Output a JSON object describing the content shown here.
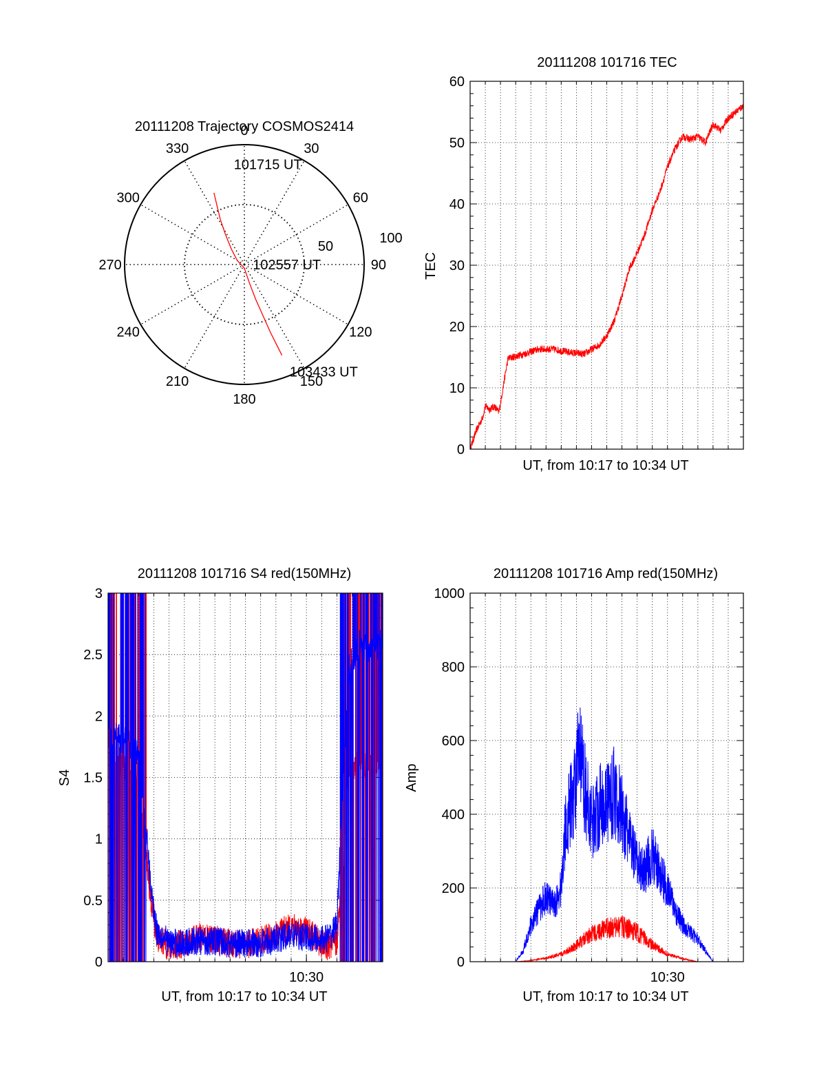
{
  "colors": {
    "red": "#ff0000",
    "blue": "#0000ff",
    "axis": "#000000",
    "grid": "#000000"
  },
  "chart_data": [
    {
      "id": "trajectory",
      "type": "polar",
      "title": "20111208 Trajectory COSMOS2414",
      "angle_labels": [
        "0",
        "30",
        "60",
        "90",
        "120",
        "150",
        "180",
        "210",
        "240",
        "270",
        "300",
        "330"
      ],
      "angles_deg": [
        0,
        30,
        60,
        90,
        120,
        150,
        180,
        210,
        240,
        270,
        300,
        330
      ],
      "radial_range": [
        0,
        100
      ],
      "radial_ticks": [
        {
          "r": 50,
          "label": "50"
        },
        {
          "r": 100,
          "label": "100"
        }
      ],
      "track": [
        [
          337,
          65
        ],
        [
          335,
          54
        ],
        [
          332,
          43
        ],
        [
          328,
          30
        ],
        [
          320,
          17
        ],
        [
          300,
          7
        ],
        [
          180,
          3
        ],
        [
          165,
          15
        ],
        [
          162,
          30
        ],
        [
          160,
          45
        ],
        [
          159,
          60
        ],
        [
          158,
          73
        ],
        [
          157.5,
          82
        ]
      ],
      "annotations": [
        {
          "text": "101715 UT",
          "az": 354,
          "r": 84
        },
        {
          "text": "102557 UT",
          "az": 90,
          "r": 7
        },
        {
          "text": "103433 UT",
          "az": 157,
          "r": 97
        }
      ]
    },
    {
      "id": "tec",
      "type": "line",
      "title": "20111208 101716 TEC",
      "xlabel": "UT, from 10:17 to 10:34 UT",
      "ylabel": "TEC",
      "xlim": [
        0,
        18
      ],
      "ylim": [
        0,
        60
      ],
      "yticks": [
        "0",
        "10",
        "20",
        "30",
        "40",
        "50",
        "60"
      ],
      "xticks": [],
      "series": [
        {
          "name": "TEC",
          "color": "red",
          "x": [
            0,
            0.4,
            0.8,
            1.0,
            1.3,
            1.6,
            1.9,
            2.1,
            2.3,
            2.5,
            2.8,
            3.5,
            4.5,
            5.5,
            6.5,
            7.5,
            8.5,
            9.0,
            9.5,
            10.0,
            10.5,
            11.0,
            11.5,
            12.0,
            12.5,
            13.0,
            13.5,
            14.0,
            14.5,
            15.0,
            15.5,
            16.0,
            16.5,
            17.0,
            17.5,
            18.0
          ],
          "y": [
            0,
            3,
            5,
            7,
            6.5,
            7,
            6,
            9,
            12,
            14.8,
            15,
            15.5,
            16.3,
            16.3,
            15.8,
            15.5,
            17,
            18.5,
            21,
            25,
            29.5,
            32,
            35,
            39,
            42,
            46,
            49,
            51,
            50.5,
            51,
            50,
            53,
            52,
            54,
            55,
            56
          ],
          "jitter": 0.6
        }
      ]
    },
    {
      "id": "s4",
      "type": "line",
      "title": "20111208 101716 S4 red(150MHz)",
      "xlabel": "UT, from 10:17 to 10:34 UT",
      "ylabel": "S4",
      "xlim": [
        0,
        18
      ],
      "ylim": [
        0,
        3
      ],
      "yticks": [
        "0",
        "0.5",
        "1",
        "1.5",
        "2",
        "2.5",
        "3"
      ],
      "xticks": [
        {
          "x": 13,
          "label": "10:30"
        }
      ],
      "series": [
        {
          "name": "red",
          "color": "red",
          "x": [
            0,
            1.0,
            2.0,
            2.4,
            2.8,
            3.2,
            4,
            5,
            6,
            7,
            8,
            9,
            10,
            11,
            12,
            13,
            14,
            14.5,
            15,
            15.4,
            15.8,
            16.5,
            17.2,
            18
          ],
          "y": [
            1.8,
            1.6,
            1.5,
            1.0,
            0.5,
            0.2,
            0.12,
            0.15,
            0.2,
            0.18,
            0.15,
            0.14,
            0.17,
            0.22,
            0.28,
            0.25,
            0.15,
            0.12,
            0.15,
            0.8,
            1.6,
            1.6,
            1.6,
            1.6
          ],
          "jitter": 0.12
        },
        {
          "name": "blue",
          "color": "blue",
          "x": [
            0,
            1.0,
            2.0,
            2.4,
            2.8,
            3.2,
            4,
            5,
            6,
            7,
            8,
            9,
            10,
            11,
            12,
            13,
            14,
            14.5,
            15,
            15.4,
            15.8,
            16.5,
            17.2,
            18
          ],
          "y": [
            1.9,
            1.8,
            1.7,
            1.2,
            0.6,
            0.25,
            0.15,
            0.15,
            0.17,
            0.17,
            0.15,
            0.15,
            0.15,
            0.18,
            0.22,
            0.2,
            0.18,
            0.2,
            0.3,
            1.5,
            2.4,
            2.6,
            2.5,
            2.6
          ],
          "jitter": 0.12
        }
      ]
    },
    {
      "id": "amp",
      "type": "line",
      "title": "20111208 101716 Amp red(150MHz)",
      "xlabel": "UT, from 10:17 to 10:34 UT",
      "ylabel": "Amp",
      "xlim": [
        0,
        18
      ],
      "ylim": [
        0,
        1000
      ],
      "yticks": [
        "0",
        "200",
        "400",
        "600",
        "800",
        "1000"
      ],
      "xticks": [
        {
          "x": 13,
          "label": "10:30"
        }
      ],
      "series": [
        {
          "name": "blue",
          "color": "blue",
          "x": [
            0,
            2,
            3,
            3.5,
            4,
            4.5,
            5,
            5.5,
            6,
            6.3,
            6.8,
            7.2,
            7.6,
            8,
            8.5,
            9,
            9.5,
            10,
            10.5,
            11,
            11.5,
            12,
            12.5,
            13,
            13.5,
            14,
            14.5,
            15,
            16,
            18
          ],
          "y": [
            0,
            0,
            0,
            30,
            100,
            140,
            180,
            150,
            200,
            380,
            450,
            560,
            460,
            380,
            420,
            440,
            460,
            400,
            330,
            260,
            250,
            290,
            240,
            200,
            140,
            100,
            80,
            60,
            0,
            0
          ],
          "jitter": 70
        },
        {
          "name": "red",
          "color": "red",
          "x": [
            0,
            3,
            4,
            5,
            6,
            7,
            8,
            9,
            10,
            11,
            12,
            13,
            14,
            15,
            18
          ],
          "y": [
            0,
            0,
            3,
            10,
            20,
            45,
            75,
            90,
            95,
            80,
            45,
            20,
            8,
            0,
            0
          ],
          "jitter": 14
        }
      ]
    }
  ]
}
